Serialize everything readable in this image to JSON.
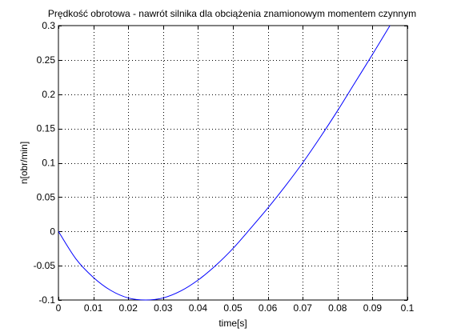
{
  "colors": {
    "line": "#0000ff",
    "axes": "#000000",
    "grid": "#000000",
    "background": "#ffffff"
  },
  "chart_data": {
    "type": "line",
    "title": "Prędkość obrotowa - nawrót silnika dla obciążenia znamionowym momentem czynnym",
    "xlabel": "time[s]",
    "ylabel": "n[obr/min]",
    "xlim": [
      0,
      0.1
    ],
    "ylim": [
      -0.1,
      0.3
    ],
    "xticks": [
      0,
      0.01,
      0.02,
      0.03,
      0.04,
      0.05,
      0.06,
      0.07,
      0.08,
      0.09,
      0.1
    ],
    "xtick_labels": [
      "0",
      "0.01",
      "0.02",
      "0.03",
      "0.04",
      "0.05",
      "0.06",
      "0.07",
      "0.08",
      "0.09",
      "0.1"
    ],
    "yticks": [
      -0.1,
      -0.05,
      0,
      0.05,
      0.1,
      0.15,
      0.2,
      0.25,
      0.3
    ],
    "ytick_labels": [
      "-0.1",
      "-0.05",
      "0",
      "0.05",
      "0.1",
      "0.15",
      "0.2",
      "0.25",
      "0.3"
    ],
    "grid": true,
    "grid_style": "dotted",
    "series": [
      {
        "color": "#0000ff",
        "x": [
          0,
          0.005,
          0.01,
          0.015,
          0.02,
          0.025,
          0.03,
          0.035,
          0.04,
          0.045,
          0.05,
          0.055,
          0.06,
          0.065,
          0.07,
          0.075,
          0.08,
          0.085,
          0.09,
          0.095
        ],
        "y": [
          0,
          -0.04,
          -0.067,
          -0.086,
          -0.097,
          -0.1,
          -0.097,
          -0.087,
          -0.071,
          -0.05,
          -0.025,
          0.004,
          0.034,
          0.066,
          0.1,
          0.137,
          0.176,
          0.217,
          0.258,
          0.3
        ]
      }
    ]
  }
}
